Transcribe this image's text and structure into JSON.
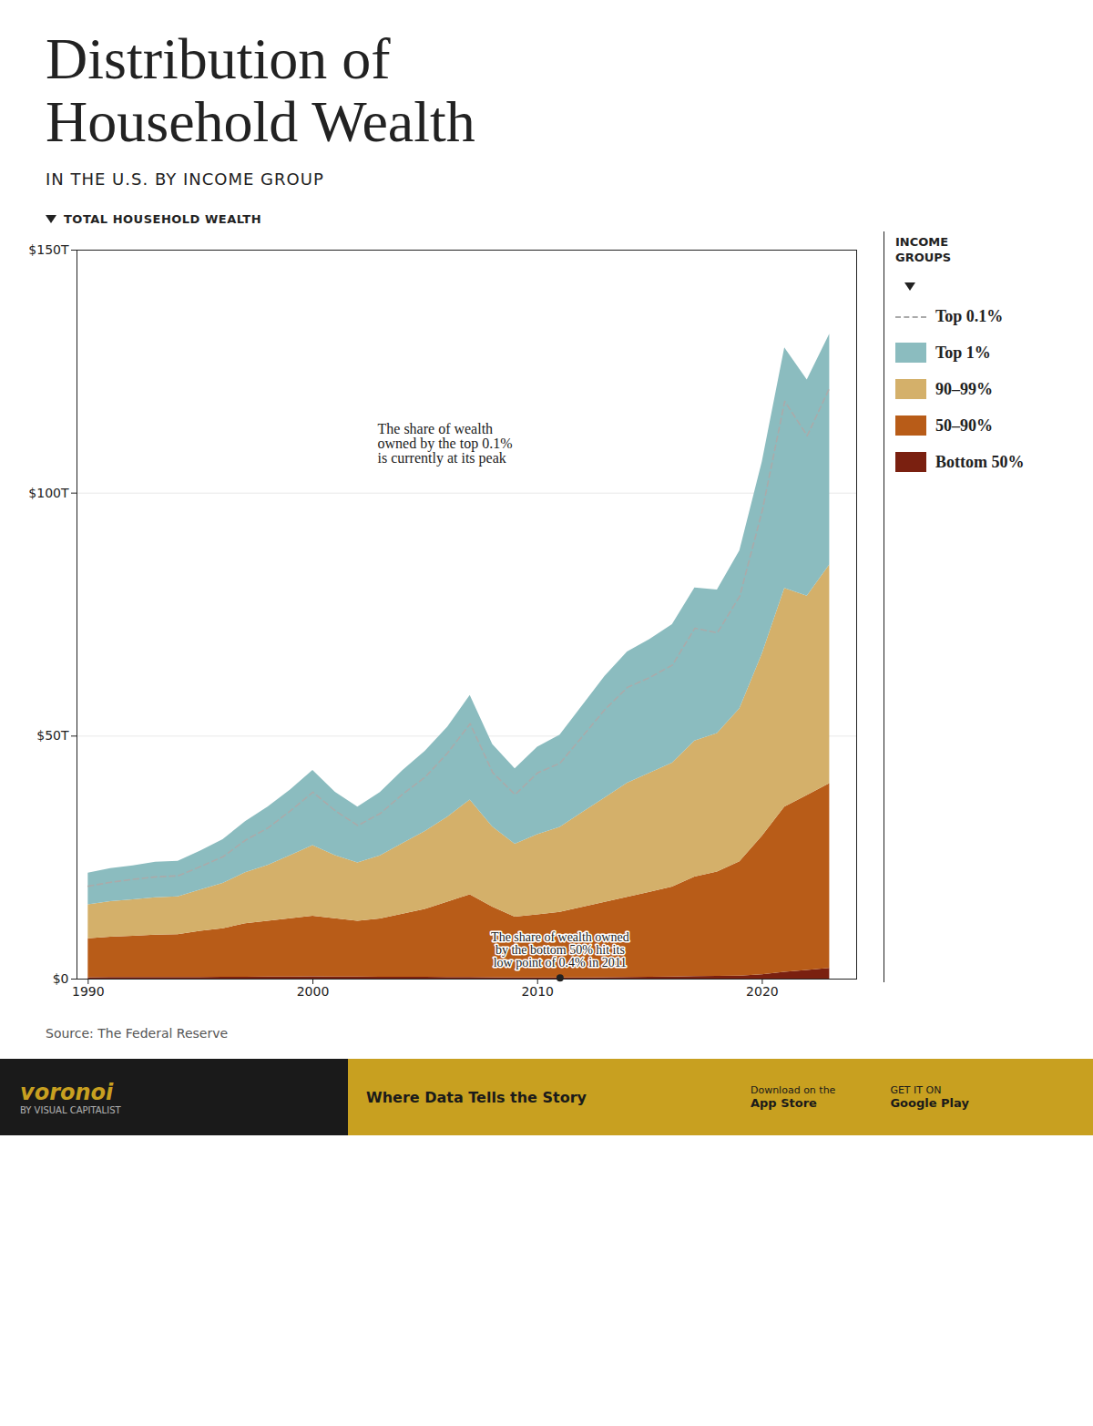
{
  "chart_data": {
    "type": "area",
    "stacked": true,
    "title": "Distribution of\nHousehold Wealth",
    "subtitle": "IN THE U.S. BY INCOME GROUP",
    "ylabel": "TOTAL HOUSEHOLD WEALTH",
    "source": "Source: The Federal Reserve",
    "legend": "right",
    "legend_title": "INCOME\nGROUPS",
    "x": [
      1990,
      1991,
      1992,
      1993,
      1994,
      1995,
      1996,
      1997,
      1998,
      1999,
      2000,
      2001,
      2002,
      2003,
      2004,
      2005,
      2006,
      2007,
      2008,
      2009,
      2010,
      2011,
      2012,
      2013,
      2014,
      2015,
      2016,
      2017,
      2018,
      2019,
      2020,
      2021,
      2022,
      2023
    ],
    "xlim": [
      1989.5,
      2024.2
    ],
    "xticks": [
      1990,
      2000,
      2010,
      2020
    ],
    "ylim": [
      0,
      150
    ],
    "yticks": [
      {
        "value": 0,
        "label": "$0"
      },
      {
        "value": 50,
        "label": "$50T"
      },
      {
        "value": 100,
        "label": "$100T"
      },
      {
        "value": 150,
        "label": "$150T"
      }
    ],
    "grid": true,
    "series": [
      {
        "name": "Bottom 50%",
        "color": "#7a2010",
        "values": [
          0.3,
          0.32,
          0.32,
          0.33,
          0.34,
          0.35,
          0.37,
          0.38,
          0.4,
          0.42,
          0.45,
          0.42,
          0.4,
          0.38,
          0.37,
          0.36,
          0.35,
          0.35,
          0.3,
          0.25,
          0.23,
          0.22,
          0.25,
          0.28,
          0.32,
          0.37,
          0.42,
          0.5,
          0.55,
          0.62,
          0.9,
          1.4,
          1.8,
          2.2
        ]
      },
      {
        "name": "50–90%",
        "color": "#b85c18",
        "values": [
          8.0,
          8.3,
          8.5,
          8.7,
          8.8,
          9.5,
          10.0,
          11.0,
          11.5,
          12.0,
          12.5,
          12.0,
          11.5,
          12.0,
          13.0,
          14.0,
          15.5,
          17.0,
          14.5,
          12.5,
          13.0,
          13.5,
          14.5,
          15.5,
          16.5,
          17.5,
          18.5,
          20.5,
          21.5,
          23.5,
          28.5,
          34.0,
          36.0,
          38.0
        ]
      },
      {
        "name": "90–99%",
        "color": "#d4b06a",
        "values": [
          7.0,
          7.3,
          7.5,
          7.7,
          7.8,
          8.5,
          9.3,
          10.5,
          11.5,
          13.0,
          14.5,
          13.0,
          12.0,
          13.0,
          14.5,
          16.0,
          17.5,
          19.5,
          16.5,
          15.0,
          16.5,
          17.5,
          19.5,
          21.5,
          23.5,
          24.5,
          25.5,
          28.0,
          28.5,
          31.5,
          37.5,
          45.0,
          41.0,
          45.0
        ]
      },
      {
        "name": "Top 1%",
        "color": "#8bbcbf",
        "values": [
          6.5,
          6.8,
          7.0,
          7.3,
          7.3,
          8.0,
          9.0,
          10.5,
          12.0,
          13.5,
          15.5,
          13.0,
          11.5,
          13.0,
          15.0,
          16.5,
          18.5,
          21.5,
          17.0,
          15.5,
          18.0,
          19.0,
          22.0,
          25.0,
          27.0,
          27.5,
          28.5,
          31.5,
          29.5,
          32.5,
          39.5,
          49.5,
          44.5,
          47.5
        ]
      },
      {
        "name": "Top 0.1%",
        "type": "line",
        "line_style": "dashed",
        "color": "#aaaaaa",
        "values": [
          3.8,
          4.0,
          4.2,
          4.3,
          4.3,
          4.8,
          5.5,
          6.7,
          7.7,
          9.2,
          11.0,
          9.2,
          7.7,
          8.7,
          10.2,
          11.2,
          13.2,
          15.7,
          11.2,
          10.2,
          12.7,
          13.2,
          15.7,
          18.2,
          19.7,
          19.7,
          20.2,
          23.2,
          20.7,
          23.2,
          29.5,
          38.5,
          33.0,
          36.5
        ]
      }
    ],
    "annotations": [
      {
        "text": "The share of wealth\nowned by the top 0.1%\nis currently at its peak"
      },
      {
        "text": "The share of wealth owned\nby the bottom 50% hit its\nlow point of 0.4% in 2011",
        "series": "Bottom 50%",
        "marker": "dot"
      }
    ],
    "footer": [
      "voronoi",
      "BY VISUAL CAPITALIST",
      "Where Data Tells the Story",
      "Download on the",
      "App Store",
      "GET IT ON",
      "Google Play"
    ]
  }
}
